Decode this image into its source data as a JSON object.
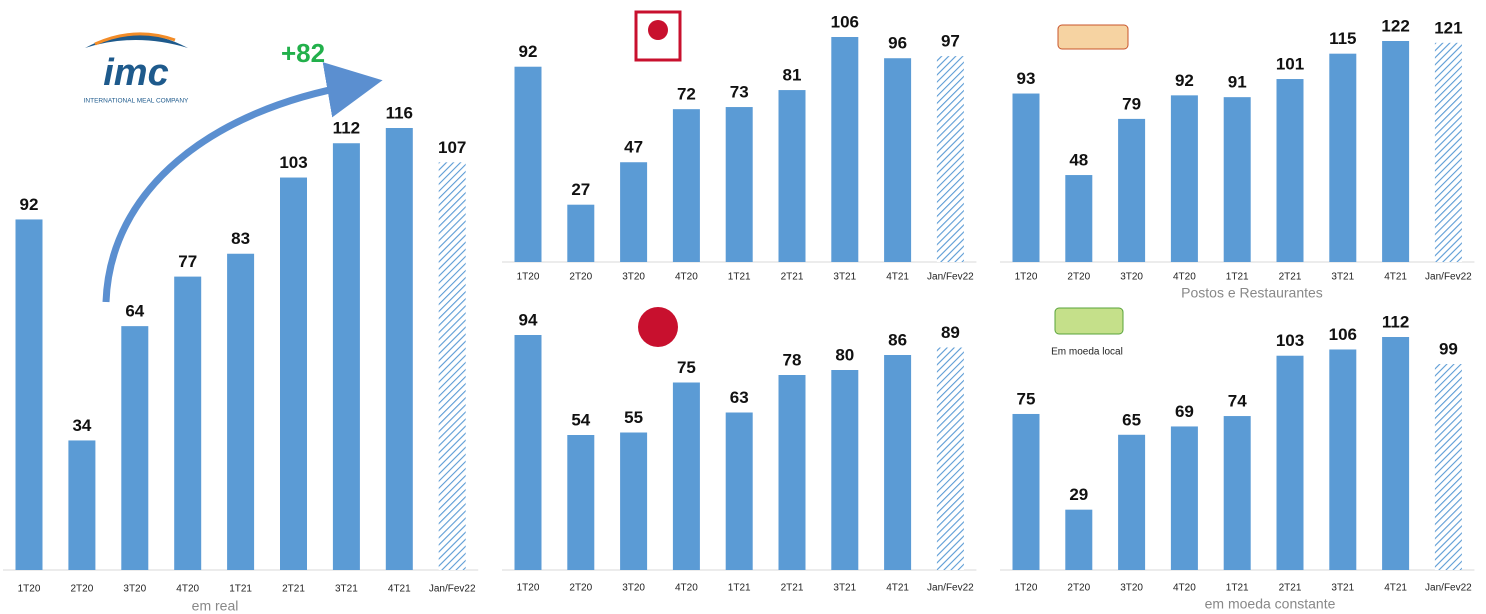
{
  "chart_data": [
    {
      "type": "bar",
      "logo_text": "imc",
      "logo_subtext": "INTERNATIONAL MEAL COMPANY",
      "annotation": "+82",
      "footer": "em real",
      "color": "#5b9bd5",
      "categories": [
        "1T20",
        "2T20",
        "3T20",
        "4T20",
        "1T21",
        "2T21",
        "3T21",
        "4T21",
        "Jan/Fev22"
      ],
      "values": [
        92,
        34,
        64,
        77,
        83,
        103,
        112,
        116,
        107
      ]
    },
    {
      "type": "bar",
      "color": "#5b9bd5",
      "categories": [
        "1T20",
        "2T20",
        "3T20",
        "4T20",
        "1T21",
        "2T21",
        "3T21",
        "4T21",
        "Jan/Fev22"
      ],
      "values": [
        92,
        27,
        47,
        72,
        73,
        81,
        106,
        96,
        97
      ]
    },
    {
      "type": "bar",
      "color": "#5b9bd5",
      "categories": [
        "1T20",
        "2T20",
        "3T20",
        "4T20",
        "1T21",
        "2T21",
        "3T21",
        "4T21",
        "Jan/Fev22"
      ],
      "values": [
        94,
        54,
        55,
        75,
        63,
        78,
        80,
        86,
        89
      ]
    },
    {
      "type": "bar",
      "subtitle": "Postos e Restaurantes",
      "color": "#5b9bd5",
      "categories": [
        "1T20",
        "2T20",
        "3T20",
        "4T20",
        "1T21",
        "2T21",
        "3T21",
        "4T21",
        "Jan/Fev22"
      ],
      "values": [
        93,
        48,
        79,
        92,
        91,
        101,
        115,
        122,
        121
      ]
    },
    {
      "type": "bar",
      "note": "Em moeda local",
      "footer": "em moeda constante",
      "color": "#5b9bd5",
      "categories": [
        "1T20",
        "2T20",
        "3T20",
        "4T20",
        "1T21",
        "2T21",
        "3T21",
        "4T21",
        "Jan/Fev22"
      ],
      "values": [
        75,
        29,
        65,
        69,
        74,
        103,
        106,
        112,
        99
      ]
    }
  ]
}
